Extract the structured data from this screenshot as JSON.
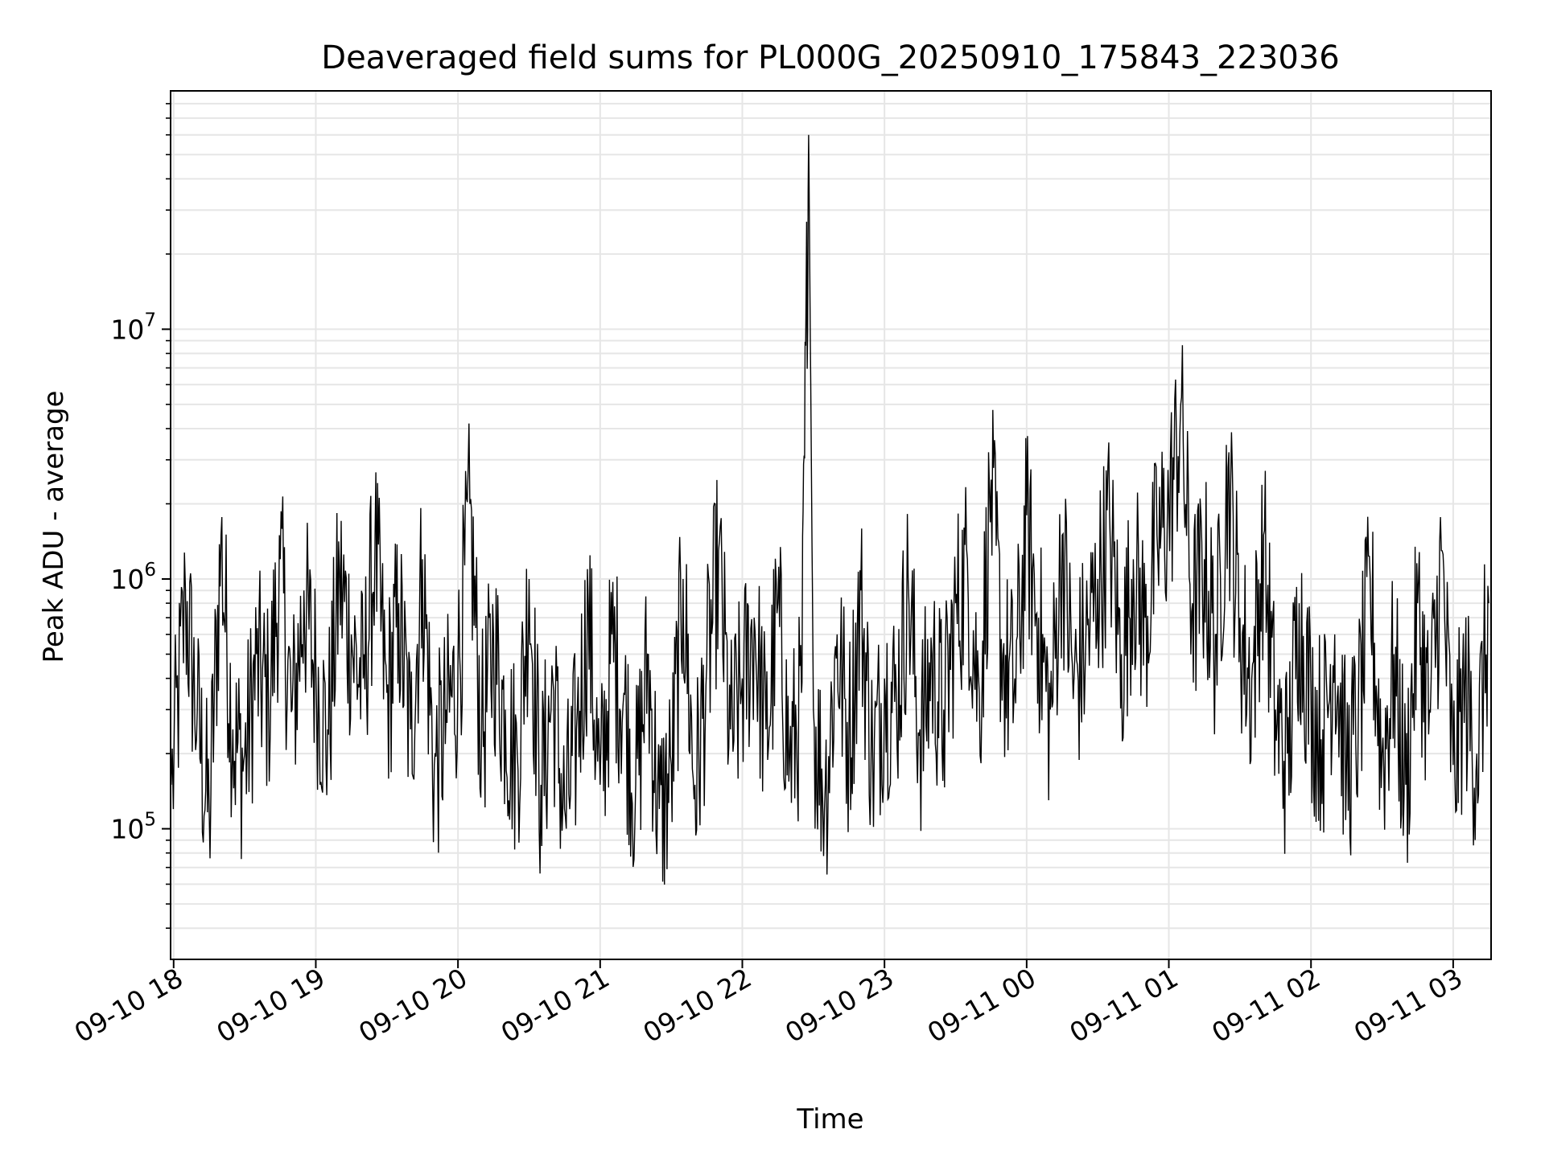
{
  "chart_data": {
    "type": "line",
    "title": "Deaveraged field sums for PL000G_20250910_175843_223036",
    "xlabel": "Time",
    "ylabel": "Peak ADU - average",
    "yscale": "log",
    "ylim": [
      30000,
      90000000
    ],
    "xlim": [
      "2025-09-10 17:58:43",
      "2025-09-11 03:16:00"
    ],
    "grid": true,
    "line_color": "#000000",
    "grid_color": "#e6e6e6",
    "x_ticks": [
      {
        "label": "09-10 18",
        "value": "2025-09-10 18:00"
      },
      {
        "label": "09-10 19",
        "value": "2025-09-10 19:00"
      },
      {
        "label": "09-10 20",
        "value": "2025-09-10 20:00"
      },
      {
        "label": "09-10 21",
        "value": "2025-09-10 21:00"
      },
      {
        "label": "09-10 22",
        "value": "2025-09-10 22:00"
      },
      {
        "label": "09-10 23",
        "value": "2025-09-10 23:00"
      },
      {
        "label": "09-11 00",
        "value": "2025-09-11 00:00"
      },
      {
        "label": "09-11 01",
        "value": "2025-09-11 01:00"
      },
      {
        "label": "09-11 02",
        "value": "2025-09-11 02:00"
      },
      {
        "label": "09-11 03",
        "value": "2025-09-11 03:00"
      }
    ],
    "y_ticks": [
      {
        "base": "10",
        "exp": "5",
        "value": 100000
      },
      {
        "base": "10",
        "exp": "6",
        "value": 1000000
      },
      {
        "base": "10",
        "exp": "7",
        "value": 10000000
      }
    ],
    "series": [
      {
        "x": [
          "2025-09-10 17:59",
          "2025-09-10 18:05",
          "2025-09-10 18:10",
          "2025-09-10 18:15",
          "2025-09-10 18:20",
          "2025-09-10 18:25",
          "2025-09-10 18:30",
          "2025-09-10 18:35",
          "2025-09-10 18:40",
          "2025-09-10 18:45",
          "2025-09-10 18:50",
          "2025-09-10 18:55",
          "2025-09-10 19:00",
          "2025-09-10 19:05",
          "2025-09-10 19:10",
          "2025-09-10 19:15",
          "2025-09-10 19:20",
          "2025-09-10 19:25",
          "2025-09-10 19:30",
          "2025-09-10 19:35",
          "2025-09-10 19:40",
          "2025-09-10 19:45",
          "2025-09-10 19:50",
          "2025-09-10 19:55",
          "2025-09-10 20:00",
          "2025-09-10 20:05",
          "2025-09-10 20:10",
          "2025-09-10 20:15",
          "2025-09-10 20:20",
          "2025-09-10 20:25",
          "2025-09-10 20:30",
          "2025-09-10 20:35",
          "2025-09-10 20:40",
          "2025-09-10 20:45",
          "2025-09-10 20:50",
          "2025-09-10 20:55",
          "2025-09-10 21:00",
          "2025-09-10 21:05",
          "2025-09-10 21:10",
          "2025-09-10 21:15",
          "2025-09-10 21:20",
          "2025-09-10 21:25",
          "2025-09-10 21:30",
          "2025-09-10 21:35",
          "2025-09-10 21:40",
          "2025-09-10 21:45",
          "2025-09-10 21:50",
          "2025-09-10 21:55",
          "2025-09-10 22:00",
          "2025-09-10 22:05",
          "2025-09-10 22:10",
          "2025-09-10 22:15",
          "2025-09-10 22:20",
          "2025-09-10 22:25",
          "2025-09-10 22:28",
          "2025-09-10 22:30",
          "2025-09-10 22:35",
          "2025-09-10 22:40",
          "2025-09-10 22:45",
          "2025-09-10 22:50",
          "2025-09-10 22:55",
          "2025-09-10 23:00",
          "2025-09-10 23:05",
          "2025-09-10 23:10",
          "2025-09-10 23:15",
          "2025-09-10 23:20",
          "2025-09-10 23:25",
          "2025-09-10 23:30",
          "2025-09-10 23:35",
          "2025-09-10 23:40",
          "2025-09-10 23:45",
          "2025-09-10 23:50",
          "2025-09-10 23:55",
          "2025-09-11 00:00",
          "2025-09-11 00:05",
          "2025-09-11 00:10",
          "2025-09-11 00:15",
          "2025-09-11 00:20",
          "2025-09-11 00:25",
          "2025-09-11 00:30",
          "2025-09-11 00:35",
          "2025-09-11 00:40",
          "2025-09-11 00:45",
          "2025-09-11 00:50",
          "2025-09-11 00:55",
          "2025-09-11 01:00",
          "2025-09-11 01:05",
          "2025-09-11 01:10",
          "2025-09-11 01:15",
          "2025-09-11 01:20",
          "2025-09-11 01:25",
          "2025-09-11 01:30",
          "2025-09-11 01:35",
          "2025-09-11 01:40",
          "2025-09-11 01:45",
          "2025-09-11 01:50",
          "2025-09-11 01:55",
          "2025-09-11 02:00",
          "2025-09-11 02:05",
          "2025-09-11 02:10",
          "2025-09-11 02:15",
          "2025-09-11 02:20",
          "2025-09-11 02:25",
          "2025-09-11 02:30",
          "2025-09-11 02:35",
          "2025-09-11 02:40",
          "2025-09-11 02:45",
          "2025-09-11 02:50",
          "2025-09-11 02:55",
          "2025-09-11 03:00",
          "2025-09-11 03:05",
          "2025-09-11 03:10",
          "2025-09-11 03:15"
        ],
        "y": [
          150000,
          900000,
          300000,
          120000,
          1500000,
          250000,
          200000,
          500000,
          350000,
          1200000,
          300000,
          900000,
          450000,
          250000,
          1100000,
          600000,
          400000,
          1500000,
          350000,
          800000,
          250000,
          1200000,
          180000,
          300000,
          450000,
          2000000,
          250000,
          600000,
          300000,
          200000,
          1000000,
          150000,
          400000,
          120000,
          250000,
          800000,
          150000,
          600000,
          350000,
          150000,
          500000,
          120000,
          180000,
          1000000,
          150000,
          450000,
          1300000,
          250000,
          400000,
          700000,
          250000,
          800000,
          200000,
          350000,
          60000000,
          300000,
          150000,
          600000,
          250000,
          900000,
          200000,
          400000,
          350000,
          1000000,
          250000,
          500000,
          300000,
          800000,
          1200000,
          350000,
          2500000,
          500000,
          400000,
          1800000,
          700000,
          300000,
          1500000,
          400000,
          600000,
          1000000,
          1800000,
          500000,
          1200000,
          700000,
          1500000,
          2000000,
          5000000,
          800000,
          1200000,
          600000,
          2800000,
          700000,
          400000,
          1500000,
          300000,
          200000,
          800000,
          350000,
          250000,
          600000,
          180000,
          300000,
          1000000,
          200000,
          500000,
          150000,
          800000,
          300000,
          1300000,
          180000,
          400000,
          200000,
          800000
        ]
      }
    ]
  }
}
